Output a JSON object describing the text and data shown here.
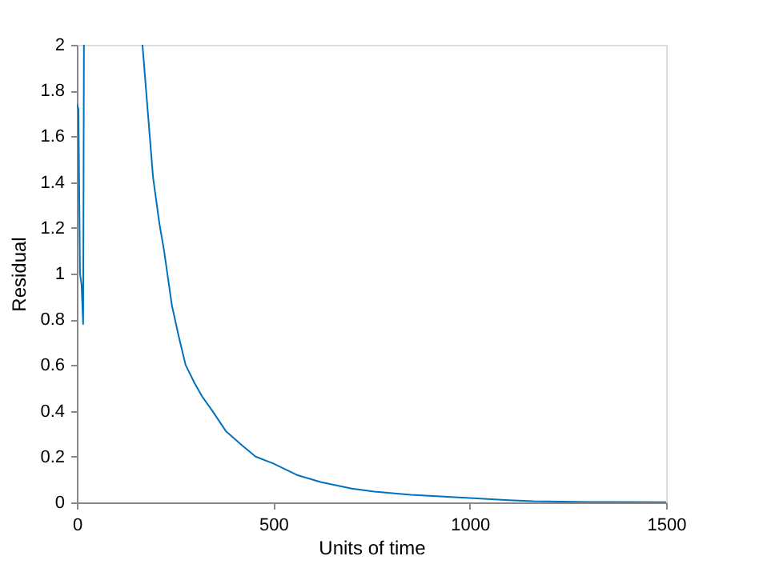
{
  "chart_data": {
    "type": "line",
    "xlabel": "Units of time",
    "ylabel": "Residual",
    "x": [
      0,
      4,
      8,
      12,
      16,
      18,
      90,
      167,
      180,
      194,
      210,
      222,
      242,
      260,
      277,
      300,
      320,
      345,
      380,
      420,
      455,
      500,
      560,
      622,
      700,
      757,
      850,
      1000,
      1100,
      1162,
      1300,
      1500
    ],
    "series": [
      {
        "color": "#0072bd",
        "values": [
          1.74,
          1.72,
          1.0,
          0.95,
          0.78,
          2,
          null,
          2,
          1.72,
          1.42,
          1.22,
          1.1,
          0.86,
          0.72,
          0.6,
          0.52,
          0.46,
          0.4,
          0.31,
          0.25,
          0.2,
          0.17,
          0.12,
          0.088,
          0.06,
          0.047,
          0.033,
          0.019,
          0.01,
          0.005,
          0.002,
          0.001
        ]
      }
    ],
    "xlim": [
      0,
      1500
    ],
    "xticks": [
      0,
      500,
      1000,
      1500
    ],
    "ylim": [
      0,
      2
    ],
    "yticks": [
      0,
      0.2,
      0.4,
      0.6,
      0.8,
      1,
      1.2,
      1.4,
      1.6,
      1.8,
      2
    ],
    "grid": false,
    "marker": "none",
    "line_style": "solid"
  }
}
